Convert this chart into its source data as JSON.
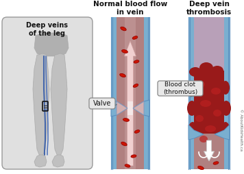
{
  "background_color": "#ffffff",
  "title_left": "Normal blood flow\nin vein",
  "title_right": "Deep vein\nthrombosis",
  "label_leg_box": "Deep veins\nof the leg",
  "label_valve": "Valve",
  "label_clot": "Blood clot\n(thrombus)",
  "watermark": "© AboutKidsHealth.ca",
  "vein_blue_outer": "#5b8fbf",
  "vein_blue_light": "#7aafd0",
  "vein_inner_color": "#b08080",
  "vein_inner_light": "#c8a0a0",
  "rbc_color": "#cc1500",
  "rbc_edge": "#990000",
  "clot_dark": "#7a1010",
  "clot_mid": "#991a1a",
  "clot_light": "#bb2020",
  "clot_texture": "#aa1515",
  "arrow_fill": "#f0d0d0",
  "arrow_edge": "#d0a0a0",
  "leg_fill": "#c0c0c0",
  "leg_edge": "#aaaaaa",
  "leg_vein1": "#4466aa",
  "leg_vein2": "#5577bb",
  "box_bg": "#e0e0e0",
  "box_edge": "#999999",
  "label_bg": "#e8e8e8",
  "label_edge": "#888888",
  "white": "#ffffff",
  "near_white": "#f5e8e8"
}
